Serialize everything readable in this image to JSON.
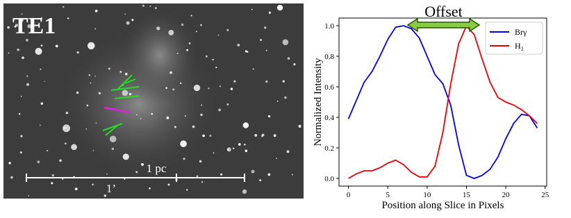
{
  "image": {
    "label": "TE1",
    "scale_label_top": "1 pc",
    "scale_label_bottom": "1’"
  },
  "chart_data": {
    "type": "line",
    "title": "Offset",
    "xlabel": "Position along Slice in Pixels",
    "ylabel": "Normalized Intensity",
    "x": [
      0,
      1,
      2,
      3,
      4,
      5,
      6,
      7,
      8,
      9,
      10,
      11,
      12,
      13,
      14,
      15,
      16,
      17,
      18,
      19,
      20,
      21,
      22,
      23,
      24
    ],
    "series": [
      {
        "name": "Brγ",
        "color": "#0000ee",
        "values": [
          0.39,
          0.51,
          0.63,
          0.7,
          0.8,
          0.91,
          0.99,
          1.0,
          0.98,
          0.92,
          0.8,
          0.68,
          0.62,
          0.48,
          0.22,
          0.02,
          0.0,
          0.02,
          0.06,
          0.14,
          0.26,
          0.36,
          0.42,
          0.41,
          0.33
        ]
      },
      {
        "name": "H₂",
        "color": "#ee0000",
        "values": [
          0.0,
          0.03,
          0.05,
          0.05,
          0.07,
          0.1,
          0.12,
          0.09,
          0.04,
          0.01,
          0.01,
          0.08,
          0.3,
          0.62,
          0.88,
          1.0,
          0.94,
          0.78,
          0.63,
          0.53,
          0.5,
          0.48,
          0.45,
          0.41,
          0.36
        ]
      }
    ],
    "xlim": [
      -1.2,
      25.2
    ],
    "ylim": [
      -0.05,
      1.05
    ],
    "xticks": [
      0,
      5,
      10,
      15,
      20,
      25
    ],
    "yticks": [
      {
        "value": 0,
        "label": "0.0"
      },
      {
        "value": 0.2,
        "label": "0.2"
      },
      {
        "value": 0.4,
        "label": "0.4"
      },
      {
        "value": 0.6,
        "label": "0.6"
      },
      {
        "value": 0.8,
        "label": "0.8"
      },
      {
        "value": 1,
        "label": "1.0"
      }
    ],
    "legend": "upper right",
    "grid": false
  }
}
